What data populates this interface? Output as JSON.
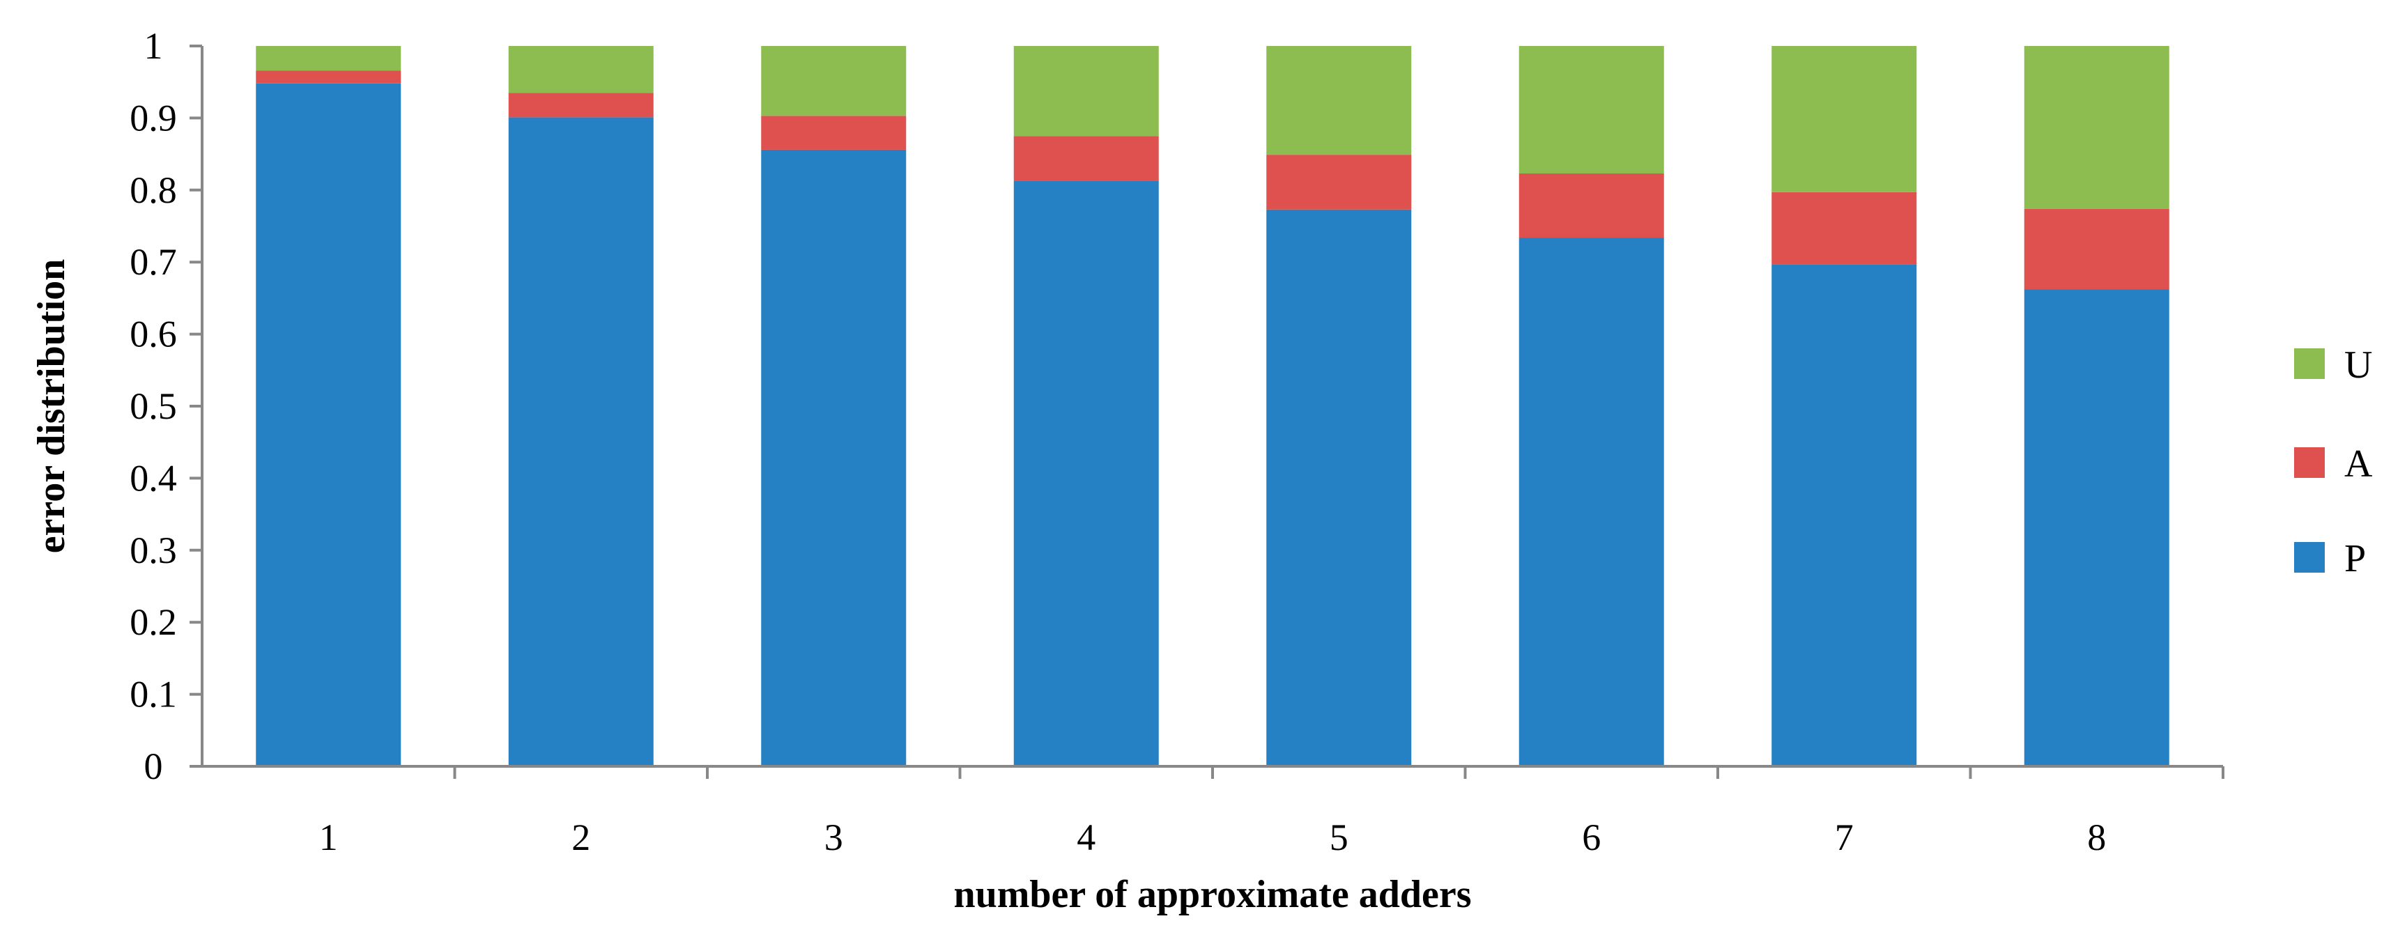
{
  "chart_data": {
    "type": "bar",
    "stacked": true,
    "categories": [
      "1",
      "2",
      "3",
      "4",
      "5",
      "6",
      "7",
      "8"
    ],
    "series": [
      {
        "name": "P",
        "color": "#2581c4",
        "values": [
          0.948,
          0.901,
          0.856,
          0.813,
          0.773,
          0.734,
          0.697,
          0.662
        ]
      },
      {
        "name": "A",
        "color": "#de514f",
        "values": [
          0.018,
          0.034,
          0.047,
          0.062,
          0.076,
          0.089,
          0.1,
          0.112
        ]
      },
      {
        "name": "U",
        "color": "#8dbd50",
        "values": [
          0.034,
          0.065,
          0.097,
          0.125,
          0.151,
          0.177,
          0.203,
          0.226
        ]
      }
    ],
    "xlabel": "number of approximate adders",
    "ylabel": "error distribution",
    "ylim": [
      0,
      1
    ],
    "yticks": [
      "0",
      "0.1",
      "0.2",
      "0.3",
      "0.4",
      "0.5",
      "0.6",
      "0.7",
      "0.8",
      "0.9",
      "1"
    ],
    "grid": false,
    "legend_position": "right",
    "legend_order": [
      "U",
      "A",
      "P"
    ]
  }
}
